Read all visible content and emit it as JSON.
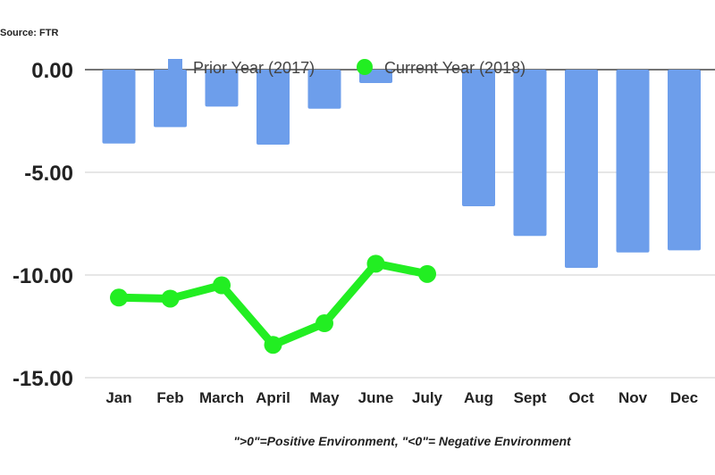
{
  "chart_data": {
    "type": "bar+line",
    "source": "Source: FTR",
    "footnote": "\">0\"=Positive Environment, \"<0\"= Negative Environment",
    "categories": [
      "Jan",
      "Feb",
      "March",
      "April",
      "May",
      "June",
      "July",
      "Aug",
      "Sept",
      "Oct",
      "Nov",
      "Dec"
    ],
    "ylim": [
      -15,
      0
    ],
    "yticks": [
      0,
      -5,
      -10,
      -15
    ],
    "ytick_labels": [
      "0.00",
      "-5.00",
      "-10.00",
      "-15.00"
    ],
    "grid": true,
    "legend_placement": "top",
    "series": [
      {
        "name": "Prior Year (2017)",
        "type": "bar",
        "color": "#6d9eeb",
        "values": [
          -3.6,
          -2.8,
          -1.8,
          -3.65,
          -1.9,
          -0.65,
          null,
          -6.65,
          -8.1,
          -9.65,
          -8.9,
          -8.8
        ]
      },
      {
        "name": "Current Year (2018)",
        "type": "line",
        "color": "#22ee22",
        "values": [
          -11.1,
          -11.15,
          -10.5,
          -13.4,
          -12.35,
          -9.45,
          -9.95,
          null,
          null,
          null,
          null,
          null
        ]
      }
    ]
  }
}
